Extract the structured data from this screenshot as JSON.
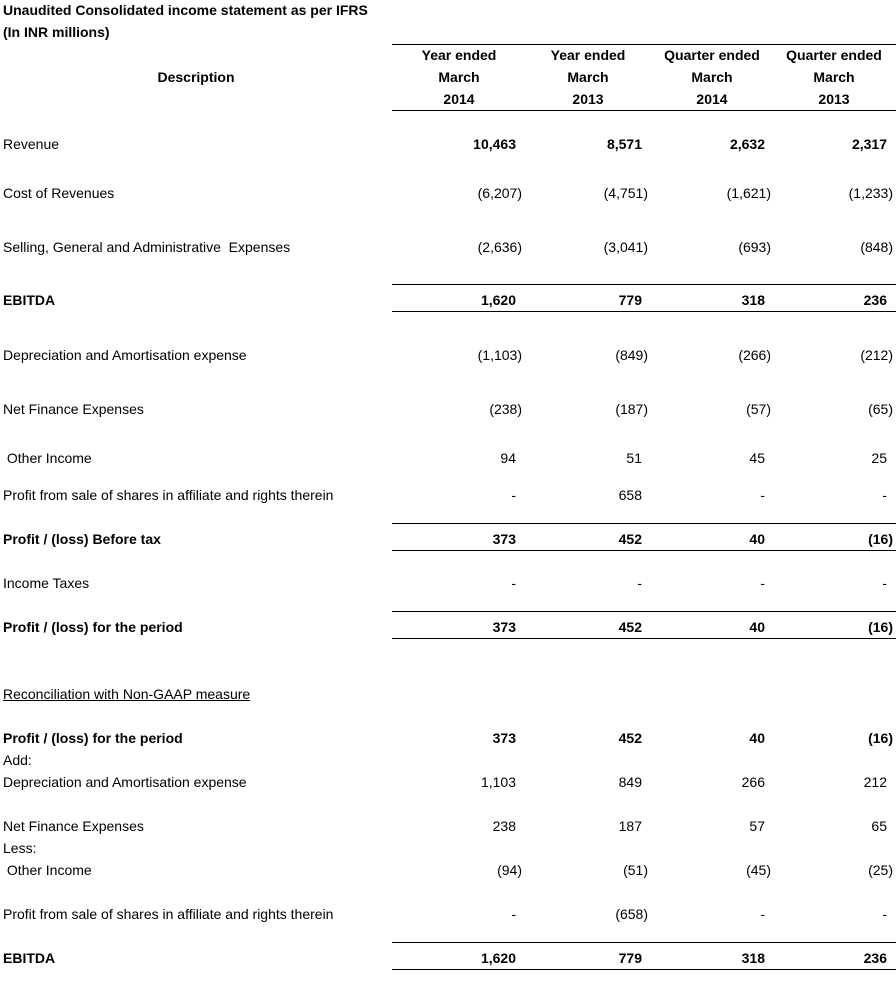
{
  "title": "Unaudited Consolidated income statement as per IFRS",
  "subtitle": "(In INR millions)",
  "header": {
    "description": "Description",
    "columns": [
      [
        "Year ended",
        "March",
        "2014"
      ],
      [
        "Year ended",
        "March",
        "2013"
      ],
      [
        "Quarter ended",
        "March",
        "2014"
      ],
      [
        "Quarter ended",
        "March",
        "2013"
      ]
    ]
  },
  "rows": [
    {
      "label": "Revenue",
      "values": [
        "10,463",
        "8,571",
        "2,632",
        "2,317"
      ],
      "bold_values": true
    },
    {
      "label": "Cost of Revenues",
      "values": [
        "(6,207)",
        "(4,751)",
        "(1,621)",
        "(1,233)"
      ]
    },
    {
      "label": "Selling, General and Administrative  Expenses",
      "values": [
        "(2,636)",
        "(3,041)",
        "(693)",
        "(848)"
      ]
    },
    {
      "label": "EBITDA",
      "values": [
        "1,620",
        "779",
        "318",
        "236"
      ],
      "bold": true,
      "ruled": true
    },
    {
      "label": "Depreciation and Amortisation expense",
      "values": [
        "(1,103)",
        "(849)",
        "(266)",
        "(212)"
      ]
    },
    {
      "label": "Net Finance Expenses",
      "values": [
        "(238)",
        "(187)",
        "(57)",
        "(65)"
      ]
    },
    {
      "label": " Other Income",
      "values": [
        "94",
        "51",
        "45",
        "25"
      ]
    },
    {
      "label": "Profit from sale of shares in affiliate and rights therein",
      "values": [
        "-",
        "658",
        "-",
        "-"
      ]
    },
    {
      "label": "Profit / (loss) Before tax",
      "values": [
        "373",
        "452",
        "40",
        "(16)"
      ],
      "bold": true,
      "ruled": true
    },
    {
      "label": "Income Taxes",
      "values": [
        "-",
        "-",
        "-",
        "-"
      ]
    },
    {
      "label": "Profit / (loss) for the period",
      "values": [
        "373",
        "452",
        "40",
        "(16)"
      ],
      "bold": true,
      "ruled": true
    },
    {
      "label": "Reconciliation with Non-GAAP measure",
      "values": [],
      "underline": true
    },
    {
      "label": "Profit / (loss) for the period",
      "values": [
        "373",
        "452",
        "40",
        "(16)"
      ],
      "bold": true
    },
    {
      "label": "Add:",
      "values": []
    },
    {
      "label": "Depreciation and Amortisation expense",
      "values": [
        "1,103",
        "849",
        "266",
        "212"
      ]
    },
    {
      "label": "Net Finance Expenses",
      "values": [
        "238",
        "187",
        "57",
        "65"
      ]
    },
    {
      "label": "Less:",
      "values": []
    },
    {
      "label": " Other Income",
      "values": [
        "(94)",
        "(51)",
        "(45)",
        "(25)"
      ]
    },
    {
      "label": "Profit from sale of shares in affiliate and rights therein",
      "values": [
        "-",
        "(658)",
        "-",
        "-"
      ]
    },
    {
      "label": "EBITDA",
      "values": [
        "1,620",
        "779",
        "318",
        "236"
      ],
      "bold": true,
      "ruled": true
    }
  ]
}
